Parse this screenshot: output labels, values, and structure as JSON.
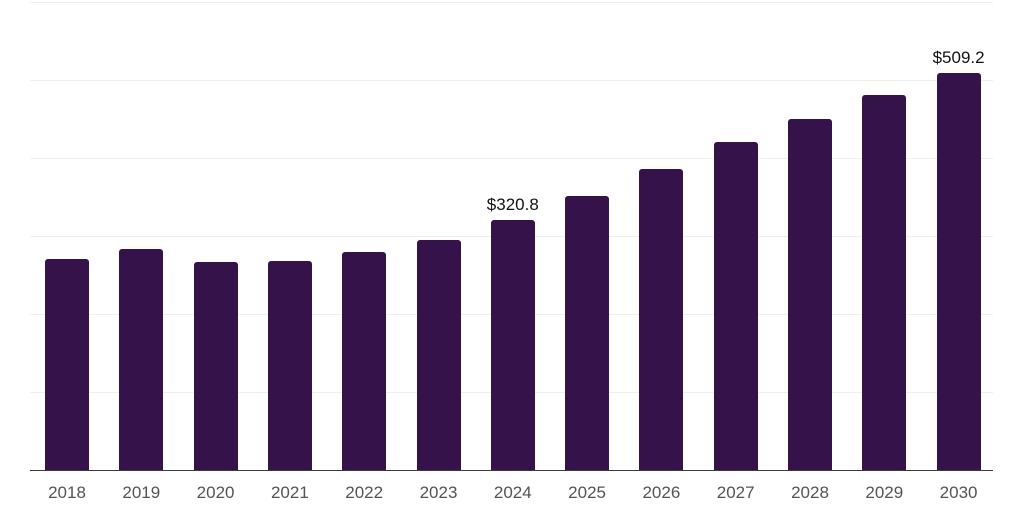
{
  "chart_data": {
    "type": "bar",
    "title": "",
    "xlabel": "",
    "ylabel": "",
    "categories": [
      "2018",
      "2019",
      "2020",
      "2021",
      "2022",
      "2023",
      "2024",
      "2025",
      "2026",
      "2027",
      "2028",
      "2029",
      "2030"
    ],
    "values": [
      270.9,
      282.8,
      266.5,
      267.8,
      279.3,
      295.2,
      320.8,
      351.9,
      386.0,
      420.1,
      450.0,
      480.7,
      509.2
    ],
    "data_labels": {
      "2024": "$320.8",
      "2030": "$509.2"
    },
    "unit_prefix": "$",
    "ylim": [
      0,
      600
    ],
    "gridline_step": 100,
    "grid": "horizontal-only",
    "legend": "none",
    "y_tick_labels_visible": false
  },
  "style": {
    "background_color": "#ffffff",
    "bar_color": "#36124a",
    "gridline_color": "#efefef",
    "axis_line_color": "#3d3d3d",
    "tick_label_color": "#545454",
    "data_label_color": "#121212"
  }
}
